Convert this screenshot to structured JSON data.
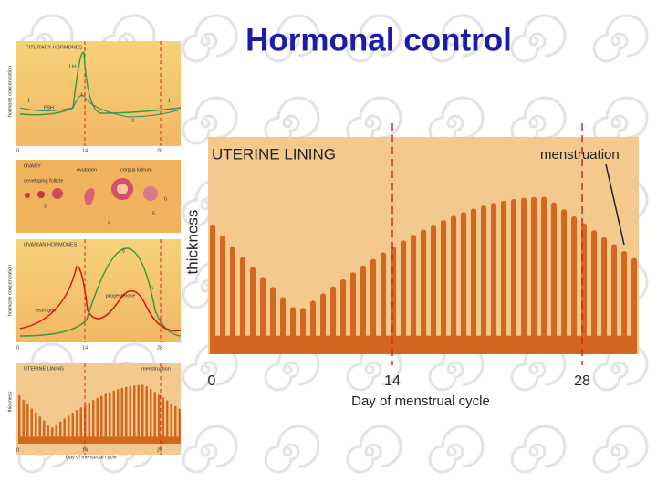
{
  "title": "Hormonal control",
  "panels": [
    {
      "heading": "PITUITARY HORMONES",
      "y_label": "hormone concentration",
      "curves": [
        "LH",
        "FSH"
      ],
      "markers": [
        "1",
        "1",
        "1",
        "2"
      ],
      "x_ticks": [
        "0",
        "14",
        "28"
      ]
    },
    {
      "heading": "OVARY",
      "labels": [
        "developing follicle",
        "ovulation",
        "corpus luteum"
      ],
      "markers": [
        "3",
        "4",
        "5",
        "6"
      ]
    },
    {
      "heading": "OVARIAN HORMONES",
      "y_label": "hormone concentration",
      "curves": [
        "progesterone",
        "estrogen"
      ],
      "markers": [
        "5",
        "6"
      ],
      "x_ticks": [
        "0",
        "14",
        "28"
      ]
    },
    {
      "heading": "UTERINE LINING",
      "y_label": "thickness",
      "note": "menstruation",
      "x_ticks": [
        "0",
        "14",
        "28"
      ],
      "x_label": "Day of menstrual cycle"
    }
  ],
  "main": {
    "heading": "UTERINE LINING",
    "note": "menstruation",
    "y_label": "thickness",
    "x_ticks": [
      "0",
      "14",
      "28"
    ],
    "x_label": "Day of menstrual cycle"
  }
}
